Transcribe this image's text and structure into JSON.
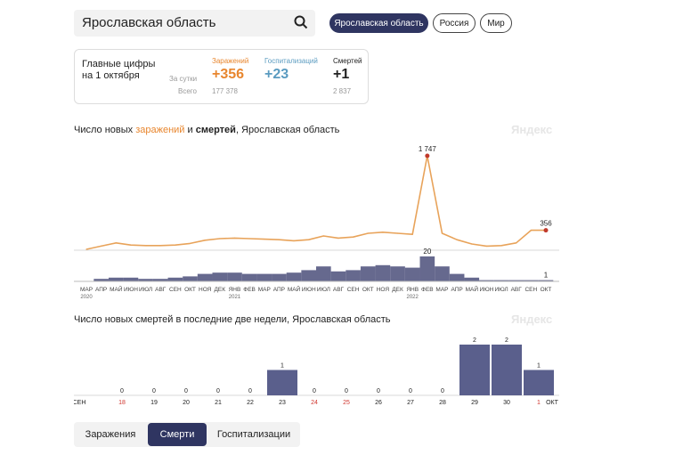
{
  "search": {
    "value": "Ярославская область"
  },
  "region_pills": [
    {
      "label": "Ярославская область",
      "active": true
    },
    {
      "label": "Россия",
      "active": false
    },
    {
      "label": "Мир",
      "active": false
    }
  ],
  "summary": {
    "title_line1": "Главные цифры",
    "title_line2": "на 1 октября",
    "row1_label": "За сутки",
    "row2_label": "Всего",
    "cols": [
      {
        "label": "Заражений",
        "daily": "+356",
        "total": "177 378",
        "color": "#e8862e"
      },
      {
        "label": "Госпитализаций",
        "daily": "+23",
        "total": "",
        "color": "#5a9bc0"
      },
      {
        "label": "Смертей",
        "daily": "+1",
        "total": "2 837",
        "color": "#222222"
      }
    ]
  },
  "chart1": {
    "title_prefix": "Число новых ",
    "title_cases": "заражений",
    "title_and": " и ",
    "title_deaths": "смертей",
    "title_suffix": ", Ярославская область",
    "watermark": "Яндекс",
    "peak_label": "1 747",
    "last_label": "356",
    "deaths_peak_label": "20",
    "deaths_last_label": "1",
    "x_ticks": [
      "МАР",
      "АПР",
      "МАЙ",
      "ИЮН",
      "ИЮЛ",
      "АВГ",
      "СЕН",
      "ОКТ",
      "НОЯ",
      "ДЕК",
      "ЯНВ",
      "ФЕВ",
      "МАР",
      "АПР",
      "МАЙ",
      "ИЮН",
      "ИЮЛ",
      "АВГ",
      "СЕН",
      "ОКТ",
      "НОЯ",
      "ДЕК",
      "ЯНВ",
      "ФЕВ",
      "МАР",
      "АПР",
      "МАЙ",
      "ИЮН",
      "ИЮЛ",
      "АВГ",
      "СЕН",
      "ОКТ"
    ],
    "year_labels": [
      {
        "label": "2020",
        "index": 0
      },
      {
        "label": "2021",
        "index": 10
      },
      {
        "label": "2022",
        "index": 22
      }
    ]
  },
  "chart_data": [
    {
      "type": "line",
      "title": "Число новых заражений и смертей, Ярославская область",
      "series": [
        {
          "name": "заражений",
          "color": "#e8a35a",
          "months": [
            "МАР",
            "АПР",
            "МАЙ",
            "ИЮН",
            "ИЮЛ",
            "АВГ",
            "СЕН",
            "ОКТ",
            "НОЯ",
            "ДЕК",
            "ЯНВ",
            "ФЕВ",
            "МАР",
            "АПР",
            "МАЙ",
            "ИЮН",
            "ИЮЛ",
            "АВГ",
            "СЕН",
            "ОКТ",
            "НОЯ",
            "ДЕК",
            "ЯНВ",
            "ФЕВ",
            "МАР",
            "АПР",
            "МАЙ",
            "ИЮН",
            "ИЮЛ",
            "АВГ",
            "СЕН",
            "ОКТ"
          ],
          "values": [
            0,
            60,
            120,
            80,
            70,
            70,
            80,
            110,
            170,
            200,
            210,
            200,
            190,
            180,
            160,
            180,
            250,
            210,
            230,
            300,
            320,
            300,
            280,
            1747,
            300,
            180,
            100,
            60,
            70,
            120,
            356,
            356
          ]
        },
        {
          "name": "смертей",
          "color": "#4b4f7a",
          "values": [
            0,
            2,
            3,
            3,
            2,
            2,
            3,
            4,
            6,
            7,
            7,
            6,
            6,
            6,
            7,
            9,
            12,
            8,
            9,
            12,
            13,
            12,
            11,
            20,
            12,
            6,
            3,
            1,
            1,
            1,
            1,
            1
          ]
        }
      ]
    },
    {
      "type": "bar",
      "title": "Число новых смертей в последние две недели, Ярославская область",
      "categories": [
        "18",
        "19",
        "20",
        "21",
        "22",
        "23",
        "24",
        "25",
        "26",
        "27",
        "28",
        "29",
        "30",
        "1"
      ],
      "values": [
        0,
        0,
        0,
        0,
        0,
        1,
        0,
        0,
        0,
        0,
        0,
        2,
        2,
        1
      ],
      "weekend": [
        true,
        false,
        false,
        false,
        false,
        false,
        true,
        true,
        false,
        false,
        false,
        false,
        false,
        true
      ],
      "color": "#5a5f8c"
    }
  ],
  "chart2": {
    "title": "Число новых смертей в последние две недели, Ярославская область",
    "watermark": "Яндекс",
    "left_month": "СЕН",
    "right_month": "ОКТ"
  },
  "tabs": [
    {
      "label": "Заражения",
      "active": false
    },
    {
      "label": "Смерти",
      "active": true
    },
    {
      "label": "Госпитализации",
      "active": false
    }
  ]
}
